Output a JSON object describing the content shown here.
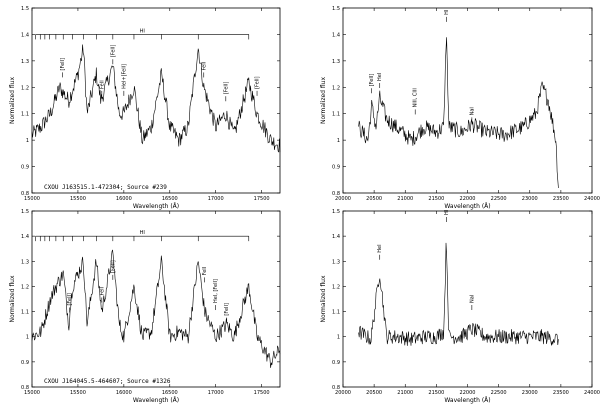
{
  "figure": {
    "colors": {
      "axis": "#000000",
      "spectrum": "#000000",
      "background": "#ffffff"
    }
  },
  "chart_data": [
    {
      "type": "line",
      "xlabel": "Wavelength (Å)",
      "ylabel": "Normalized flux",
      "xlim": [
        15000,
        17700
      ],
      "ylim": [
        0.8,
        1.5
      ],
      "xticks": [
        15000,
        15500,
        16000,
        16500,
        17000,
        17500
      ],
      "xtick_labels": [
        "15000",
        "15500",
        "16000",
        "16500",
        "17000",
        "17500"
      ],
      "yticks": [
        0.8,
        0.9,
        1.0,
        1.1,
        1.2,
        1.3,
        1.4,
        1.5
      ],
      "ytick_labels": [
        "0.8",
        "0.9",
        "1",
        "1.1",
        "1.2",
        "1.3",
        "1.4",
        "1.5"
      ],
      "annotation": "CXOU J163515.1-472304; Source #239",
      "series_label": "HI",
      "hi_ladder_x": [
        15040,
        15090,
        15140,
        15190,
        15260,
        15340,
        15440,
        15560,
        15700,
        15880,
        16110,
        16410,
        16810,
        17360
      ],
      "line_labels": [
        {
          "text": "[FeII]",
          "x": 15330,
          "y": 1.26
        },
        {
          "text": "FeII",
          "x": 15760,
          "y": 1.19
        },
        {
          "text": "[FeII]",
          "x": 15880,
          "y": 1.31
        },
        {
          "text": "HeI+[FeII]",
          "x": 16000,
          "y": 1.19
        },
        {
          "text": "FeII",
          "x": 16870,
          "y": 1.26
        },
        {
          "text": "[FeII]",
          "x": 17110,
          "y": 1.17
        },
        {
          "text": "[FeII]",
          "x": 17450,
          "y": 1.19
        }
      ],
      "x": [
        15000,
        15100,
        15200,
        15300,
        15400,
        15500,
        15560,
        15600,
        15700,
        15750,
        15880,
        15950,
        16000,
        16110,
        16200,
        16300,
        16410,
        16500,
        16600,
        16700,
        16810,
        16870,
        17000,
        17110,
        17200,
        17360,
        17450,
        17600,
        17700
      ],
      "y": [
        1.02,
        1.05,
        1.1,
        1.2,
        1.15,
        1.25,
        1.35,
        1.1,
        1.25,
        1.15,
        1.28,
        1.1,
        1.1,
        1.2,
        1.0,
        1.05,
        1.25,
        1.05,
        1.0,
        1.05,
        1.35,
        1.2,
        1.05,
        1.1,
        1.02,
        1.22,
        1.1,
        1.0,
        0.98
      ]
    },
    {
      "type": "line",
      "xlabel": "Wavelength (Å)",
      "ylabel": "Normalized flux",
      "xlim": [
        20000,
        24000
      ],
      "ylim": [
        0.8,
        1.5
      ],
      "xticks": [
        20000,
        20500,
        21000,
        21500,
        22000,
        22500,
        23000,
        23500,
        24000
      ],
      "xtick_labels": [
        "20000",
        "20500",
        "21000",
        "21500",
        "22000",
        "22500",
        "23000",
        "23500",
        "24000"
      ],
      "yticks": [
        0.8,
        0.9,
        1.0,
        1.1,
        1.2,
        1.3,
        1.4,
        1.5
      ],
      "ytick_labels": [
        "0.8",
        "0.9",
        "1",
        "1.1",
        "1.2",
        "1.3",
        "1.4",
        "1.5"
      ],
      "line_labels": [
        {
          "text": "[FeII]",
          "x": 20460,
          "y": 1.2
        },
        {
          "text": "HeI",
          "x": 20590,
          "y": 1.22
        },
        {
          "text": "NIII, CIII",
          "x": 21160,
          "y": 1.12
        },
        {
          "text": "HI",
          "x": 21660,
          "y": 1.47
        },
        {
          "text": "NaI",
          "x": 22070,
          "y": 1.09
        }
      ],
      "x": [
        20250,
        20400,
        20460,
        20530,
        20590,
        20700,
        20900,
        21100,
        21300,
        21500,
        21620,
        21660,
        21700,
        21900,
        22070,
        22300,
        22600,
        22900,
        23100,
        23200,
        23300,
        23420,
        23460
      ],
      "y": [
        1.05,
        1.0,
        1.13,
        1.05,
        1.16,
        1.08,
        1.04,
        1.0,
        1.05,
        1.03,
        1.05,
        1.42,
        1.05,
        1.03,
        1.06,
        1.03,
        1.02,
        1.05,
        1.1,
        1.2,
        1.15,
        1.0,
        0.82
      ]
    },
    {
      "type": "line",
      "xlabel": "Wavelength (Å)",
      "ylabel": "Normalized flux",
      "xlim": [
        15000,
        17700
      ],
      "ylim": [
        0.8,
        1.5
      ],
      "xticks": [
        15000,
        15500,
        16000,
        16500,
        17000,
        17500
      ],
      "xtick_labels": [
        "15000",
        "15500",
        "16000",
        "16500",
        "17000",
        "17500"
      ],
      "yticks": [
        0.8,
        0.9,
        1.0,
        1.1,
        1.2,
        1.3,
        1.4,
        1.5
      ],
      "ytick_labels": [
        "0.8",
        "0.9",
        "1",
        "1.1",
        "1.2",
        "1.3",
        "1.4",
        "1.5"
      ],
      "annotation": "CXOU J164045.5-464607; Source #1326",
      "series_label": "HI",
      "hi_ladder_x": [
        15040,
        15090,
        15140,
        15190,
        15260,
        15340,
        15440,
        15560,
        15700,
        15880,
        16110,
        16410,
        16810,
        17360
      ],
      "line_labels": [
        {
          "text": "[FeII]",
          "x": 15410,
          "y": 1.12
        },
        {
          "text": "FeII",
          "x": 15760,
          "y": 1.16
        },
        {
          "text": "[FeII]",
          "x": 15880,
          "y": 1.25
        },
        {
          "text": "FeII",
          "x": 16880,
          "y": 1.24
        },
        {
          "text": "HeI, [FeII]",
          "x": 17000,
          "y": 1.13
        },
        {
          "text": "[FeII]",
          "x": 17120,
          "y": 1.08
        }
      ],
      "x": [
        15000,
        15100,
        15200,
        15260,
        15340,
        15400,
        15440,
        15560,
        15600,
        15700,
        15760,
        15880,
        15950,
        16000,
        16110,
        16200,
        16300,
        16410,
        16500,
        16600,
        16700,
        16810,
        16880,
        17000,
        17120,
        17200,
        17360,
        17450,
        17600,
        17700
      ],
      "y": [
        1.0,
        1.02,
        1.15,
        1.2,
        1.25,
        1.05,
        1.2,
        1.3,
        1.05,
        1.3,
        1.1,
        1.33,
        1.05,
        1.0,
        1.2,
        1.0,
        1.02,
        1.3,
        1.0,
        1.02,
        1.0,
        1.3,
        1.1,
        1.0,
        1.05,
        1.0,
        1.2,
        1.0,
        0.9,
        0.95
      ]
    },
    {
      "type": "line",
      "xlabel": "Wavelength (Å)",
      "ylabel": "Normalized flux",
      "xlim": [
        20000,
        24000
      ],
      "ylim": [
        0.8,
        1.5
      ],
      "xticks": [
        20000,
        20500,
        21000,
        21500,
        22000,
        22500,
        23000,
        23500,
        24000
      ],
      "xtick_labels": [
        "20000",
        "20500",
        "21000",
        "21500",
        "22000",
        "22500",
        "23000",
        "23500",
        "24000"
      ],
      "yticks": [
        0.8,
        0.9,
        1.0,
        1.1,
        1.2,
        1.3,
        1.4,
        1.5
      ],
      "ytick_labels": [
        "0.8",
        "0.9",
        "1",
        "1.1",
        "1.2",
        "1.3",
        "1.4",
        "1.5"
      ],
      "line_labels": [
        {
          "text": "HeI",
          "x": 20590,
          "y": 1.33
        },
        {
          "text": "HI",
          "x": 21660,
          "y": 1.48
        },
        {
          "text": "NaI",
          "x": 22070,
          "y": 1.13
        }
      ],
      "x": [
        20250,
        20450,
        20590,
        20700,
        20900,
        21100,
        21300,
        21500,
        21620,
        21660,
        21700,
        21900,
        22070,
        22300,
        22600,
        22900,
        23200,
        23460
      ],
      "y": [
        1.02,
        0.99,
        1.26,
        1.0,
        1.0,
        0.99,
        1.0,
        1.0,
        1.02,
        1.4,
        1.0,
        1.0,
        1.03,
        1.0,
        1.0,
        1.0,
        1.0,
        0.99
      ]
    }
  ]
}
